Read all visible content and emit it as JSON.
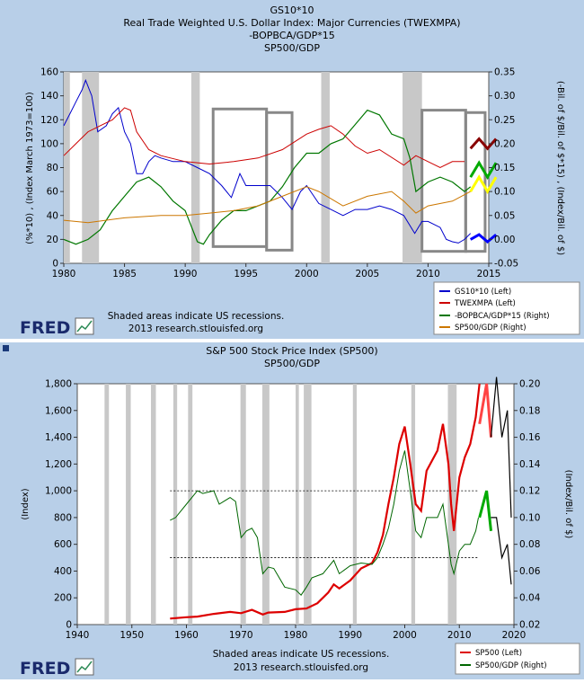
{
  "chart_data": [
    {
      "type": "line",
      "title": [
        "GS10*10",
        "Real Trade Weighted U.S. Dollar Index: Major Currencies (TWEXMPA)",
        "-BOPBCA/GDP*15",
        "SP500/GDP"
      ],
      "ylabel_left": "(%*10) , (Index March 1973=100)",
      "ylabel_right": "(-Bil. of $/Bil. of $*15) , (Index/Bil. of $)",
      "xlim": [
        1980,
        2015
      ],
      "ylim_left": [
        0,
        160
      ],
      "ylim_right": [
        -0.05,
        0.35
      ],
      "x_ticks": [
        1980,
        1985,
        1990,
        1995,
        2000,
        2005,
        2010,
        2015
      ],
      "y_ticks_left": [
        0,
        20,
        40,
        60,
        80,
        100,
        120,
        140,
        160
      ],
      "y_ticks_right": [
        "-0.05",
        "0.00",
        "0.05",
        "0.10",
        "0.15",
        "0.20",
        "0.25",
        "0.30",
        "0.35"
      ],
      "recessions": [
        [
          1980.0,
          1980.5
        ],
        [
          1981.5,
          1982.9
        ],
        [
          1990.5,
          1991.2
        ],
        [
          2001.2,
          2001.9
        ],
        [
          2007.9,
          2009.5
        ]
      ],
      "annotation_boxes": [
        [
          1992.3,
          1996.7,
          129,
          14
        ],
        [
          1996.7,
          1998.8,
          126,
          11
        ],
        [
          2009.5,
          2013.1,
          128,
          10
        ],
        [
          2013.1,
          2014.7,
          126,
          10
        ]
      ],
      "series": [
        {
          "name": "GS10*10 (Left)",
          "axis": "left",
          "color": "#0000cc",
          "x": [
            1980,
            1980.5,
            1981,
            1981.5,
            1981.8,
            1982.3,
            1982.8,
            1983.5,
            1984,
            1984.5,
            1985,
            1985.5,
            1986,
            1986.5,
            1987,
            1987.5,
            1988,
            1989,
            1990,
            1991,
            1992,
            1993,
            1993.8,
            1994.5,
            1995,
            1996,
            1997,
            1998,
            1998.8,
            1999.5,
            2000,
            2001,
            2002,
            2003,
            2004,
            2005,
            2006,
            2007,
            2008,
            2008.9,
            2009.5,
            2010,
            2011,
            2011.5,
            2012,
            2012.5,
            2013,
            2013.5
          ],
          "y": [
            115,
            125,
            135,
            145,
            153,
            140,
            110,
            115,
            125,
            130,
            110,
            100,
            75,
            75,
            85,
            90,
            88,
            85,
            85,
            80,
            75,
            65,
            55,
            75,
            65,
            65,
            65,
            55,
            45,
            60,
            65,
            50,
            45,
            40,
            45,
            45,
            48,
            45,
            40,
            25,
            35,
            35,
            30,
            20,
            18,
            17,
            20,
            25
          ]
        },
        {
          "name": "TWEXMPA (Left)",
          "axis": "left",
          "color": "#cc0000",
          "x": [
            1980,
            1981,
            1982,
            1983,
            1984,
            1985,
            1985.5,
            1986,
            1987,
            1988,
            1990,
            1992,
            1994,
            1996,
            1998,
            2000,
            2001,
            2002,
            2003,
            2004,
            2005,
            2006,
            2008,
            2009,
            2010,
            2011,
            2012,
            2013
          ],
          "y": [
            90,
            100,
            110,
            115,
            120,
            130,
            128,
            110,
            95,
            90,
            85,
            83,
            85,
            88,
            95,
            108,
            112,
            115,
            108,
            98,
            92,
            95,
            82,
            90,
            85,
            80,
            85,
            85
          ]
        },
        {
          "name": "-BOPBCA/GDP*15 (Right)",
          "axis": "right",
          "color": "#007700",
          "x": [
            1980,
            1981,
            1982,
            1983,
            1984,
            1985,
            1986,
            1987,
            1988,
            1989,
            1990,
            1991,
            1991.5,
            1992,
            1993,
            1994,
            1995,
            1996,
            1997,
            1998,
            1999,
            2000,
            2001,
            2002,
            2003,
            2004,
            2005,
            2006,
            2007,
            2008,
            2008.5,
            2009,
            2010,
            2011,
            2012,
            2013,
            2013.5
          ],
          "y": [
            0,
            -0.01,
            0,
            0.02,
            0.06,
            0.09,
            0.12,
            0.13,
            0.11,
            0.08,
            0.06,
            -0.005,
            -0.01,
            0.01,
            0.04,
            0.06,
            0.06,
            0.07,
            0.08,
            0.11,
            0.15,
            0.18,
            0.18,
            0.2,
            0.21,
            0.24,
            0.27,
            0.26,
            0.22,
            0.21,
            0.17,
            0.1,
            0.12,
            0.13,
            0.12,
            0.1,
            0.11
          ]
        },
        {
          "name": "SP500/GDP (Right)",
          "axis": "right",
          "color": "#cc7700",
          "x": [
            1980,
            1982,
            1985,
            1988,
            1990,
            1992,
            1994,
            1996,
            1998,
            2000,
            2001,
            2002,
            2003,
            2005,
            2007,
            2008,
            2009,
            2010,
            2012,
            2013.5
          ],
          "y": [
            0.04,
            0.035,
            0.045,
            0.05,
            0.05,
            0.055,
            0.06,
            0.07,
            0.09,
            0.11,
            0.1,
            0.085,
            0.07,
            0.09,
            0.1,
            0.08,
            0.055,
            0.07,
            0.08,
            0.1
          ]
        }
      ],
      "projection_marks": [
        {
          "color": "#880000",
          "x": [
            2013.5,
            2014.2,
            2014.9,
            2015.6
          ],
          "y": [
            0.19,
            0.21,
            0.19,
            0.21
          ]
        },
        {
          "color": "#00aa00",
          "x": [
            2013.5,
            2014.2,
            2014.9,
            2015.6
          ],
          "y": [
            0.13,
            0.16,
            0.13,
            0.16
          ]
        },
        {
          "color": "#ffff00",
          "x": [
            2013.5,
            2014.2,
            2014.9,
            2015.6
          ],
          "y": [
            0.1,
            0.13,
            0.1,
            0.13
          ]
        },
        {
          "color": "#0000ff",
          "x": [
            2013.5,
            2014.2,
            2014.9,
            2015.6
          ],
          "y": [
            0.0,
            0.01,
            -0.005,
            0.01
          ]
        }
      ],
      "legend": [
        "GS10*10 (Left)",
        "TWEXMPA (Left)",
        "-BOPBCA/GDP*15 (Right)",
        "SP500/GDP (Right)"
      ],
      "legend_position": "bottom-right"
    },
    {
      "type": "line",
      "title": [
        "S&P 500 Stock Price Index (SP500)",
        "SP500/GDP"
      ],
      "ylabel_left": "(Index)",
      "ylabel_right": "(Index/Bil. of $)",
      "xlim": [
        1940,
        2020
      ],
      "ylim_left": [
        0,
        1800
      ],
      "ylim_right": [
        0.02,
        0.2
      ],
      "x_ticks": [
        1940,
        1950,
        1960,
        1970,
        1980,
        1990,
        2000,
        2010,
        2020
      ],
      "y_ticks_left": [
        "0",
        "200",
        "400",
        "600",
        "800",
        "1,000",
        "1,200",
        "1,400",
        "1,600",
        "1,800"
      ],
      "y_ticks_right": [
        "0.02",
        "0.04",
        "0.06",
        "0.08",
        "0.10",
        "0.12",
        "0.14",
        "0.16",
        "0.18",
        "0.20"
      ],
      "recessions": [
        [
          1945,
          1945.8
        ],
        [
          1948.9,
          1949.8
        ],
        [
          1953.5,
          1954.4
        ],
        [
          1957.6,
          1958.3
        ],
        [
          1960.3,
          1961.1
        ],
        [
          1969.9,
          1970.9
        ],
        [
          1973.9,
          1975.2
        ],
        [
          1980.0,
          1980.6
        ],
        [
          1981.5,
          1982.9
        ],
        [
          1990.5,
          1991.2
        ],
        [
          2001.2,
          2001.9
        ],
        [
          2007.9,
          2009.5
        ]
      ],
      "reference_lines": [
        1000,
        500
      ],
      "series": [
        {
          "name": "SP500 (Left)",
          "axis": "left",
          "color": "#dd0000",
          "x": [
            1957,
            1960,
            1962,
            1965,
            1968,
            1970,
            1972,
            1974,
            1975,
            1978,
            1980,
            1982,
            1984,
            1986,
            1987,
            1988,
            1990,
            1992,
            1994,
            1995,
            1996,
            1997,
            1998,
            1999,
            2000,
            2001,
            2002,
            2003,
            2004,
            2006,
            2007,
            2008,
            2008.5,
            2009,
            2010,
            2011,
            2012,
            2013,
            2013.7
          ],
          "y": [
            45,
            55,
            60,
            80,
            95,
            85,
            110,
            75,
            90,
            95,
            115,
            120,
            160,
            240,
            300,
            270,
            330,
            420,
            460,
            540,
            670,
            900,
            1100,
            1350,
            1480,
            1200,
            900,
            850,
            1150,
            1300,
            1500,
            1200,
            900,
            700,
            1100,
            1250,
            1350,
            1550,
            1800
          ]
        },
        {
          "name": "SP500/GDP (Right)",
          "axis": "right",
          "color": "#006600",
          "x": [
            1957,
            1958,
            1960,
            1962,
            1963,
            1965,
            1966,
            1968,
            1969,
            1970,
            1971,
            1972,
            1973,
            1974,
            1975,
            1976,
            1978,
            1980,
            1981,
            1982,
            1983,
            1985,
            1987,
            1988,
            1990,
            1992,
            1994,
            1995,
            1996,
            1997,
            1998,
            1999,
            2000,
            2001,
            2002,
            2003,
            2004,
            2006,
            2007,
            2008,
            2008.5,
            2009,
            2010,
            2011,
            2012,
            2013,
            2013.5
          ],
          "y": [
            0.098,
            0.1,
            0.11,
            0.12,
            0.118,
            0.12,
            0.11,
            0.115,
            0.112,
            0.085,
            0.09,
            0.092,
            0.085,
            0.058,
            0.063,
            0.062,
            0.048,
            0.046,
            0.042,
            0.048,
            0.055,
            0.058,
            0.068,
            0.058,
            0.064,
            0.066,
            0.065,
            0.07,
            0.08,
            0.092,
            0.11,
            0.135,
            0.15,
            0.12,
            0.09,
            0.085,
            0.1,
            0.1,
            0.11,
            0.08,
            0.065,
            0.058,
            0.075,
            0.08,
            0.08,
            0.09,
            0.1
          ]
        }
      ],
      "projection_marks": [
        {
          "color": "#ff4444",
          "x": [
            2013.7,
            2015.0,
            2015.8
          ],
          "y": [
            0.17,
            0.2,
            0.16
          ]
        },
        {
          "color": "#00aa00",
          "x": [
            2013.7,
            2015.0,
            2015.8
          ],
          "y": [
            0.1,
            0.12,
            0.09
          ]
        },
        {
          "color": "#000000",
          "x": [
            2015.8,
            2016.8,
            2017.8,
            2018.8
          ],
          "y": [
            0.16,
            0.205,
            0.16,
            0.18
          ]
        },
        {
          "color": "#000000",
          "x": [
            2018.8,
            2019.5
          ],
          "y": [
            0.18,
            0.1
          ]
        },
        {
          "color": "#000000",
          "x": [
            2015.8,
            2016.8,
            2017.8,
            2018.8,
            2019.5
          ],
          "y": [
            0.1,
            0.1,
            0.07,
            0.08,
            0.05
          ]
        }
      ],
      "legend": [
        "SP500 (Left)",
        "SP500/GDP (Right)"
      ],
      "legend_position": "bottom-right"
    }
  ],
  "footer": {
    "recession_note": "Shaded areas indicate US recessions.",
    "source": "2013 research.stlouisfed.org",
    "logo": "FRED"
  }
}
